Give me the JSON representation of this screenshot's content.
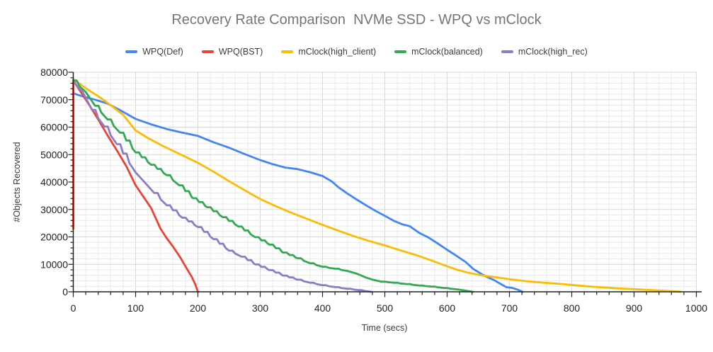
{
  "chart_data": {
    "type": "line",
    "title": "Recovery Rate Comparison  NVMe SSD - WPQ vs mClock",
    "xlabel": "Time (secs)",
    "ylabel": "#Objects Recovered",
    "xlim": [
      0,
      1000
    ],
    "ylim": [
      0,
      80000
    ],
    "x_tick_step": 100,
    "x_minor_step": 20,
    "y_tick_step": 10000,
    "y_minor_step": 2000,
    "grid": true,
    "legend_position": "top",
    "title_color": "#757575",
    "axis_color": "#222222",
    "grid_minor_color": "#e9e9e9",
    "grid_major_color": "#d8d8d8",
    "series": [
      {
        "name": "WPQ(Def)",
        "color": "#4285F4",
        "style": "smooth",
        "points": [
          [
            0,
            72300
          ],
          [
            15,
            71200
          ],
          [
            35,
            70000
          ],
          [
            55,
            68600
          ],
          [
            75,
            66200
          ],
          [
            100,
            63000
          ],
          [
            125,
            61000
          ],
          [
            150,
            59300
          ],
          [
            175,
            58000
          ],
          [
            200,
            56800
          ],
          [
            225,
            54500
          ],
          [
            250,
            52500
          ],
          [
            275,
            50200
          ],
          [
            300,
            48000
          ],
          [
            320,
            46500
          ],
          [
            340,
            45300
          ],
          [
            360,
            44700
          ],
          [
            380,
            43600
          ],
          [
            400,
            42200
          ],
          [
            415,
            40200
          ],
          [
            425,
            38200
          ],
          [
            440,
            35800
          ],
          [
            455,
            33600
          ],
          [
            470,
            31500
          ],
          [
            485,
            29500
          ],
          [
            500,
            27700
          ],
          [
            515,
            25800
          ],
          [
            528,
            24600
          ],
          [
            540,
            23900
          ],
          [
            555,
            21500
          ],
          [
            570,
            19800
          ],
          [
            585,
            17600
          ],
          [
            600,
            15300
          ],
          [
            615,
            13100
          ],
          [
            630,
            10800
          ],
          [
            642,
            8300
          ],
          [
            655,
            6500
          ],
          [
            665,
            5300
          ],
          [
            675,
            4300
          ],
          [
            685,
            3000
          ],
          [
            695,
            1700
          ],
          [
            705,
            1400
          ],
          [
            713,
            800
          ],
          [
            721,
            0
          ]
        ]
      },
      {
        "name": "WPQ(BST)",
        "color": "#EA4335",
        "style": "stepped",
        "points": [
          [
            0,
            23000
          ],
          [
            0,
            77000
          ],
          [
            12,
            72800
          ],
          [
            25,
            68300
          ],
          [
            40,
            62800
          ],
          [
            55,
            57000
          ],
          [
            70,
            51500
          ],
          [
            85,
            45800
          ],
          [
            100,
            38800
          ],
          [
            112,
            34800
          ],
          [
            125,
            30500
          ],
          [
            140,
            23000
          ],
          [
            150,
            19500
          ],
          [
            160,
            16500
          ],
          [
            172,
            12400
          ],
          [
            182,
            8500
          ],
          [
            190,
            5500
          ],
          [
            196,
            2600
          ],
          [
            200,
            0
          ]
        ]
      },
      {
        "name": "mClock(high_client)",
        "color": "#FBBC04",
        "style": "smooth",
        "points": [
          [
            0,
            77500
          ],
          [
            20,
            74200
          ],
          [
            45,
            70500
          ],
          [
            60,
            68000
          ],
          [
            80,
            64500
          ],
          [
            100,
            58800
          ],
          [
            120,
            56000
          ],
          [
            145,
            53000
          ],
          [
            170,
            50300
          ],
          [
            200,
            47000
          ],
          [
            225,
            43800
          ],
          [
            250,
            40300
          ],
          [
            275,
            37000
          ],
          [
            300,
            33800
          ],
          [
            325,
            31200
          ],
          [
            350,
            28800
          ],
          [
            375,
            26600
          ],
          [
            400,
            24400
          ],
          [
            425,
            22300
          ],
          [
            450,
            20300
          ],
          [
            475,
            18500
          ],
          [
            500,
            16900
          ],
          [
            525,
            15100
          ],
          [
            550,
            13400
          ],
          [
            575,
            11400
          ],
          [
            600,
            9300
          ],
          [
            615,
            8100
          ],
          [
            635,
            6900
          ],
          [
            660,
            5800
          ],
          [
            685,
            5100
          ],
          [
            700,
            4600
          ],
          [
            725,
            3900
          ],
          [
            750,
            3400
          ],
          [
            775,
            3000
          ],
          [
            800,
            2500
          ],
          [
            825,
            2000
          ],
          [
            850,
            1600
          ],
          [
            875,
            1250
          ],
          [
            900,
            950
          ],
          [
            925,
            650
          ],
          [
            950,
            350
          ],
          [
            975,
            0
          ]
        ]
      },
      {
        "name": "mClock(balanced)",
        "color": "#34A853",
        "style": "stepped",
        "points": [
          [
            0,
            77000
          ],
          [
            20,
            72800
          ],
          [
            35,
            67800
          ],
          [
            55,
            62800
          ],
          [
            75,
            58000
          ],
          [
            100,
            50800
          ],
          [
            125,
            46300
          ],
          [
            150,
            42500
          ],
          [
            170,
            38800
          ],
          [
            192,
            34100
          ],
          [
            215,
            30800
          ],
          [
            240,
            27200
          ],
          [
            265,
            23800
          ],
          [
            292,
            19900
          ],
          [
            315,
            17200
          ],
          [
            337,
            14300
          ],
          [
            360,
            12200
          ],
          [
            380,
            10400
          ],
          [
            400,
            9100
          ],
          [
            420,
            8400
          ],
          [
            440,
            7600
          ],
          [
            455,
            6600
          ],
          [
            470,
            5200
          ],
          [
            482,
            4300
          ],
          [
            495,
            3700
          ],
          [
            515,
            3300
          ],
          [
            535,
            2800
          ],
          [
            555,
            2300
          ],
          [
            575,
            1900
          ],
          [
            595,
            1400
          ],
          [
            615,
            900
          ],
          [
            630,
            400
          ],
          [
            641,
            0
          ]
        ]
      },
      {
        "name": "mClock(high_rec)",
        "color": "#8E7CC3",
        "style": "stepped",
        "points": [
          [
            0,
            76500
          ],
          [
            15,
            72800
          ],
          [
            30,
            66300
          ],
          [
            50,
            60200
          ],
          [
            70,
            53800
          ],
          [
            100,
            43500
          ],
          [
            115,
            39800
          ],
          [
            130,
            36000
          ],
          [
            150,
            31500
          ],
          [
            175,
            27000
          ],
          [
            200,
            23600
          ],
          [
            225,
            19200
          ],
          [
            250,
            15000
          ],
          [
            270,
            12800
          ],
          [
            292,
            10000
          ],
          [
            315,
            7900
          ],
          [
            337,
            5900
          ],
          [
            360,
            4400
          ],
          [
            380,
            3300
          ],
          [
            400,
            2400
          ],
          [
            420,
            1700
          ],
          [
            440,
            1100
          ],
          [
            458,
            600
          ],
          [
            478,
            0
          ]
        ]
      }
    ]
  }
}
